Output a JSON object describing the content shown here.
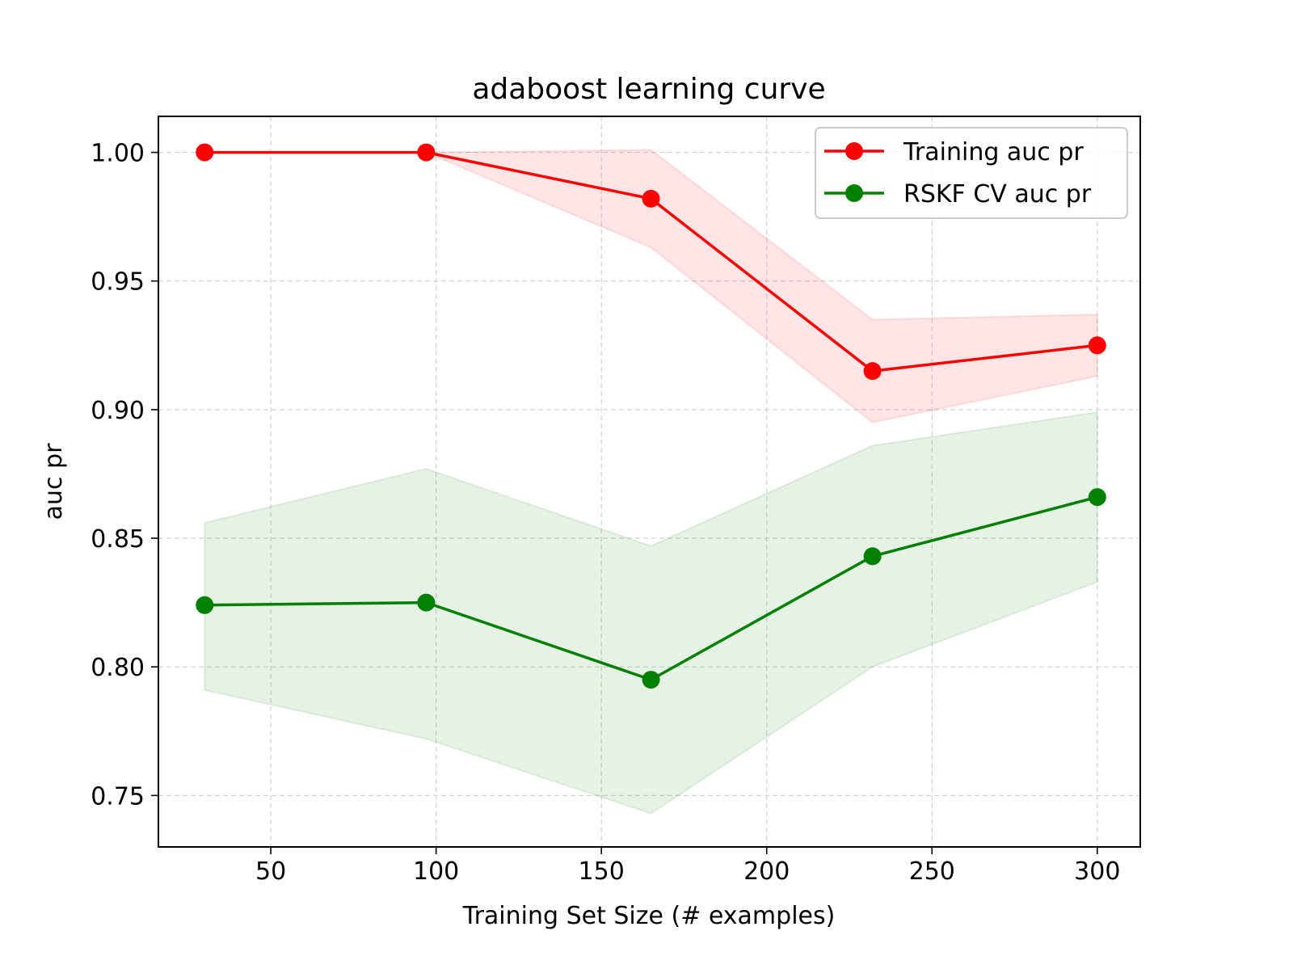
{
  "chart_data": {
    "type": "line",
    "title": "adaboost learning curve",
    "xlabel": "Training Set Size (# examples)",
    "ylabel": "auc pr",
    "xlim": [
      16,
      313
    ],
    "ylim": [
      0.73,
      1.014
    ],
    "x_ticks": [
      50,
      100,
      150,
      200,
      250,
      300
    ],
    "x_tick_labels": [
      "50",
      "100",
      "150",
      "200",
      "250",
      "300"
    ],
    "y_ticks": [
      0.75,
      0.8,
      0.85,
      0.9,
      0.95,
      1.0
    ],
    "y_tick_labels": [
      "0.75",
      "0.80",
      "0.85",
      "0.90",
      "0.95",
      "1.00"
    ],
    "grid": true,
    "legend_position": "top-right",
    "x": [
      30,
      97,
      165,
      232,
      300
    ],
    "series": [
      {
        "name": "Training auc pr",
        "color": "#ff0000",
        "band_color": "#ff0000",
        "values": [
          1.0,
          1.0,
          0.982,
          0.915,
          0.925
        ],
        "lower": [
          1.0,
          1.0,
          0.963,
          0.895,
          0.913
        ],
        "upper": [
          1.0,
          1.0,
          1.001,
          0.935,
          0.937
        ]
      },
      {
        "name": "RSKF CV auc pr",
        "color": "#008000",
        "band_color": "#008000",
        "values": [
          0.824,
          0.825,
          0.795,
          0.843,
          0.866
        ],
        "lower": [
          0.791,
          0.772,
          0.743,
          0.8,
          0.833
        ],
        "upper": [
          0.856,
          0.877,
          0.847,
          0.886,
          0.899
        ]
      }
    ]
  }
}
